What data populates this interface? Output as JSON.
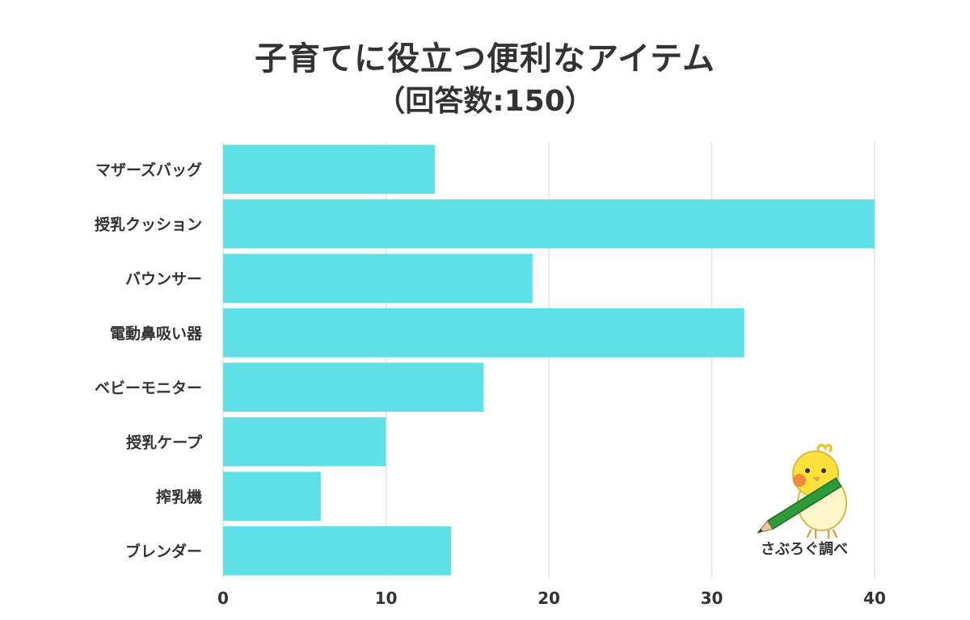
{
  "colors": {
    "bar": "#5fe0e6",
    "grid": "#e2e2e2",
    "text": "#333333",
    "bird_body": "#ffe13c",
    "bird_cheek": "#f08a3a",
    "pencil": "#2e9a3a"
  },
  "chart_data": {
    "type": "bar",
    "orientation": "horizontal",
    "title": "子育てに役立つ便利なアイテム",
    "subtitle": "（回答数:150）",
    "categories": [
      "マザーズバッグ",
      "授乳クッション",
      "バウンサー",
      "電動鼻吸い器",
      "ベビーモニター",
      "授乳ケープ",
      "搾乳機",
      "ブレンダー"
    ],
    "values": [
      13,
      40,
      19,
      32,
      16,
      10,
      6,
      14
    ],
    "xlim": [
      0,
      40
    ],
    "xticks": [
      "0",
      "10",
      "20",
      "30",
      "40"
    ],
    "grid": true,
    "xlabel": "",
    "ylabel": ""
  },
  "credit": {
    "text": "さぶろぐ調べ",
    "icon": "bird-with-pencil-icon"
  }
}
